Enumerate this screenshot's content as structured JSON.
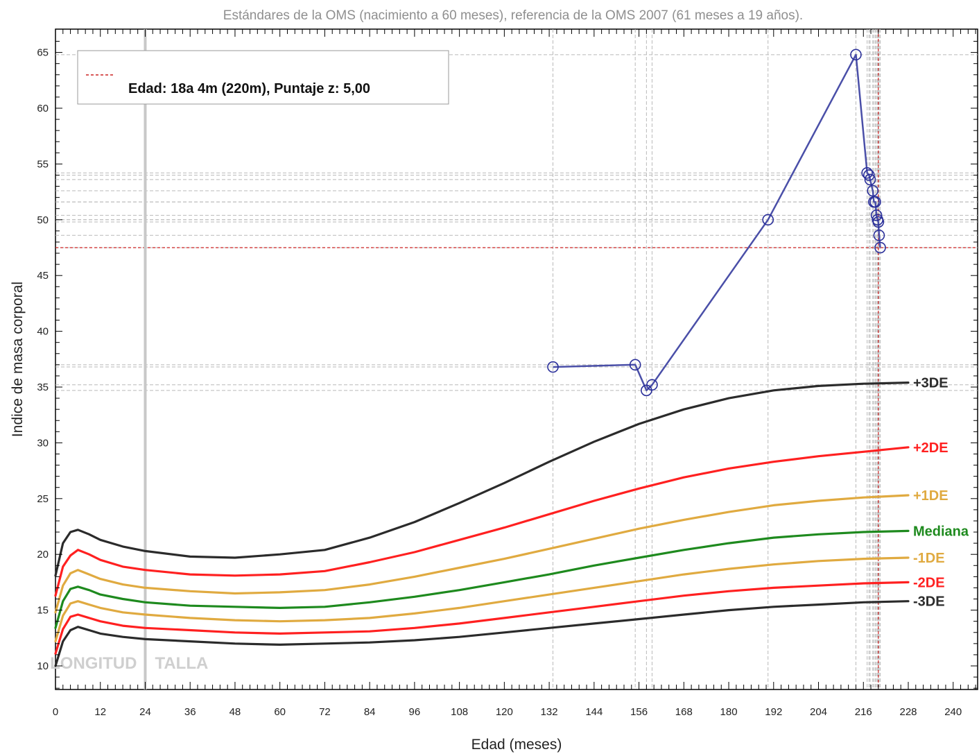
{
  "chart_data": {
    "type": "line",
    "title": "Estándares de la OMS (nacimiento a 60 meses), referencia de la OMS 2007 (61 meses a 19 años).",
    "xlabel": "Edad (meses)",
    "ylabel": "Indice de masa corporal",
    "xlim": [
      0,
      246
    ],
    "ylim": [
      8,
      66.5
    ],
    "xticks": [
      0,
      12,
      24,
      36,
      48,
      60,
      72,
      84,
      96,
      108,
      120,
      132,
      144,
      156,
      168,
      180,
      192,
      204,
      216,
      228,
      240
    ],
    "yticks": [
      10,
      15,
      20,
      25,
      30,
      35,
      40,
      45,
      50,
      55,
      60,
      65
    ],
    "grid": false,
    "legend": {
      "position": "top-left",
      "text": "Edad: 18a 4m (220m), Puntaje z: 5,00",
      "line_color": "#cc2222"
    },
    "zone_labels": [
      "LONGITUD",
      "TALLA"
    ],
    "zone_divider_x": 24,
    "current_marker": {
      "x": 220,
      "y": 47.5,
      "color": "#cc2222"
    },
    "reference_x": [
      0,
      2,
      4,
      6,
      9,
      12,
      18,
      24,
      36,
      48,
      60,
      72,
      84,
      96,
      108,
      120,
      132,
      144,
      156,
      168,
      180,
      192,
      204,
      216,
      228
    ],
    "series": [
      {
        "name": "+3DE",
        "color": "#2b2b2b",
        "values": [
          18.1,
          21.0,
          22.0,
          22.2,
          21.8,
          21.3,
          20.7,
          20.3,
          19.8,
          19.7,
          20.0,
          20.4,
          21.5,
          22.9,
          24.6,
          26.4,
          28.3,
          30.1,
          31.7,
          33.0,
          34.0,
          34.7,
          35.1,
          35.3,
          35.4
        ]
      },
      {
        "name": "+2DE",
        "color": "#ff2020",
        "values": [
          16.3,
          18.9,
          19.9,
          20.4,
          20.0,
          19.5,
          18.9,
          18.6,
          18.2,
          18.1,
          18.2,
          18.5,
          19.3,
          20.2,
          21.3,
          22.4,
          23.6,
          24.8,
          25.9,
          26.9,
          27.7,
          28.3,
          28.8,
          29.2,
          29.6
        ]
      },
      {
        "name": "+1DE",
        "color": "#e0aa40",
        "values": [
          14.8,
          17.2,
          18.3,
          18.6,
          18.2,
          17.8,
          17.3,
          17.0,
          16.7,
          16.5,
          16.6,
          16.8,
          17.3,
          18.0,
          18.8,
          19.6,
          20.5,
          21.4,
          22.3,
          23.1,
          23.8,
          24.4,
          24.8,
          25.1,
          25.3
        ]
      },
      {
        "name": "Mediana",
        "color": "#1e8a1e",
        "values": [
          13.4,
          15.8,
          16.9,
          17.1,
          16.8,
          16.4,
          16.0,
          15.7,
          15.4,
          15.3,
          15.2,
          15.3,
          15.7,
          16.2,
          16.8,
          17.5,
          18.2,
          19.0,
          19.7,
          20.4,
          21.0,
          21.5,
          21.8,
          22.0,
          22.1
        ]
      },
      {
        "name": "-1DE",
        "color": "#e0aa40",
        "values": [
          12.2,
          14.5,
          15.6,
          15.8,
          15.5,
          15.2,
          14.8,
          14.6,
          14.3,
          14.1,
          14.0,
          14.1,
          14.3,
          14.7,
          15.2,
          15.8,
          16.4,
          17.0,
          17.6,
          18.2,
          18.7,
          19.1,
          19.4,
          19.6,
          19.7
        ]
      },
      {
        "name": "-2DE",
        "color": "#ff2020",
        "values": [
          11.1,
          13.3,
          14.4,
          14.6,
          14.3,
          14.0,
          13.6,
          13.4,
          13.2,
          13.0,
          12.9,
          13.0,
          13.1,
          13.4,
          13.8,
          14.3,
          14.8,
          15.3,
          15.8,
          16.3,
          16.7,
          17.0,
          17.2,
          17.4,
          17.5
        ]
      },
      {
        "name": "-3DE",
        "color": "#2b2b2b",
        "values": [
          10.0,
          12.2,
          13.2,
          13.5,
          13.2,
          12.9,
          12.6,
          12.4,
          12.2,
          12.0,
          11.9,
          12.0,
          12.1,
          12.3,
          12.6,
          13.0,
          13.4,
          13.8,
          14.2,
          14.6,
          15.0,
          15.3,
          15.5,
          15.7,
          15.8
        ]
      }
    ],
    "patient": {
      "color": "#4a4fa8",
      "points": [
        {
          "x": 133,
          "y": 36.8
        },
        {
          "x": 155,
          "y": 37.0
        },
        {
          "x": 158,
          "y": 34.7
        },
        {
          "x": 159.5,
          "y": 35.2
        },
        {
          "x": 190.5,
          "y": 50.0
        },
        {
          "x": 214,
          "y": 64.8
        },
        {
          "x": 217,
          "y": 54.2
        },
        {
          "x": 217.5,
          "y": 54.0
        },
        {
          "x": 217.8,
          "y": 53.6
        },
        {
          "x": 218.5,
          "y": 52.6
        },
        {
          "x": 218.8,
          "y": 51.6
        },
        {
          "x": 219.2,
          "y": 51.6
        },
        {
          "x": 219.5,
          "y": 50.4
        },
        {
          "x": 219.8,
          "y": 50.0
        },
        {
          "x": 220,
          "y": 49.8
        },
        {
          "x": 220.2,
          "y": 48.6
        },
        {
          "x": 220.5,
          "y": 47.5
        }
      ]
    }
  }
}
